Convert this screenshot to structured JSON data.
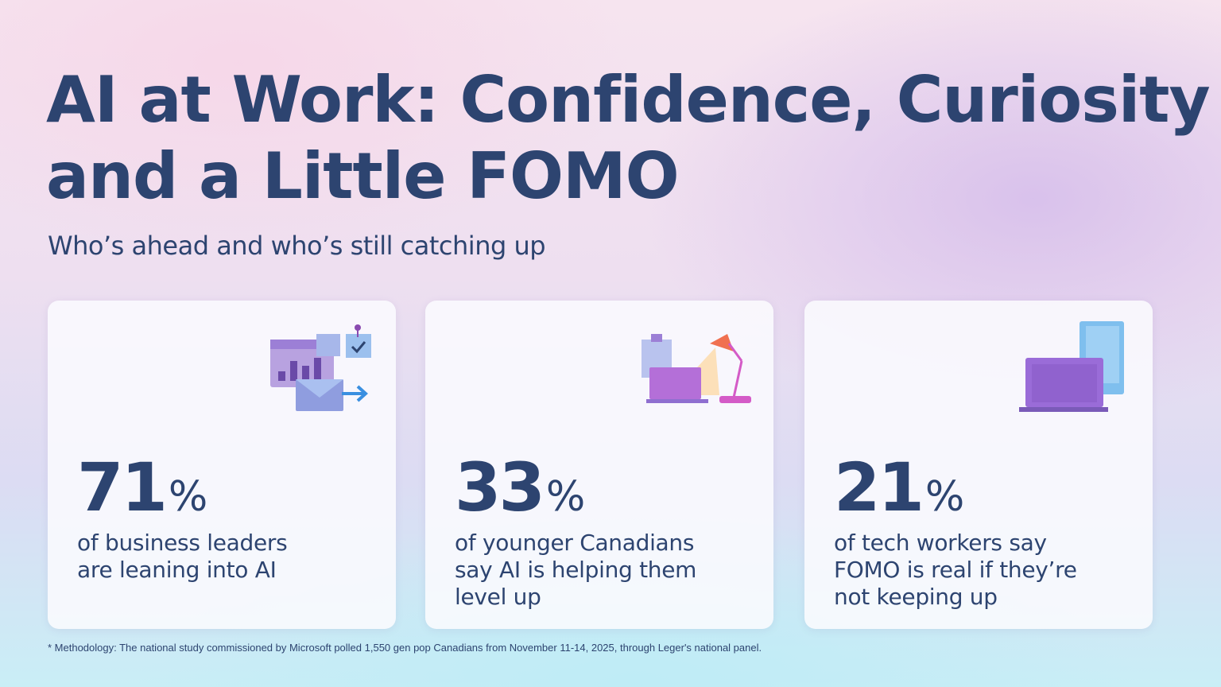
{
  "header": {
    "title_line1": "AI at Work: Confidence, Curiosity",
    "title_line2": "and a Little FOMO",
    "subtitle": "Who’s ahead and who’s still catching up"
  },
  "cards": [
    {
      "value": "71",
      "unit": "%",
      "desc_lines": [
        "of business leaders",
        "are leaning into AI"
      ],
      "icon": "dashboard-email-icon"
    },
    {
      "value": "33",
      "unit": "%",
      "desc_lines": [
        "of younger Canadians",
        "say AI is helping them",
        "level up"
      ],
      "icon": "desk-lamp-laptop-icon"
    },
    {
      "value": "21",
      "unit": "%",
      "desc_lines": [
        "of tech workers say",
        "FOMO is real if they’re",
        "not keeping up"
      ],
      "icon": "laptop-tablet-icon"
    }
  ],
  "footnote": "* Methodology: The national study commissioned by Microsoft polled 1,550 gen pop Canadians from November 11-14, 2025, through Leger's national panel.",
  "colors": {
    "text": "#2d4470",
    "accent_purple": "#8f6fd0",
    "accent_blue": "#3a8fe0",
    "accent_orange": "#f07050"
  }
}
